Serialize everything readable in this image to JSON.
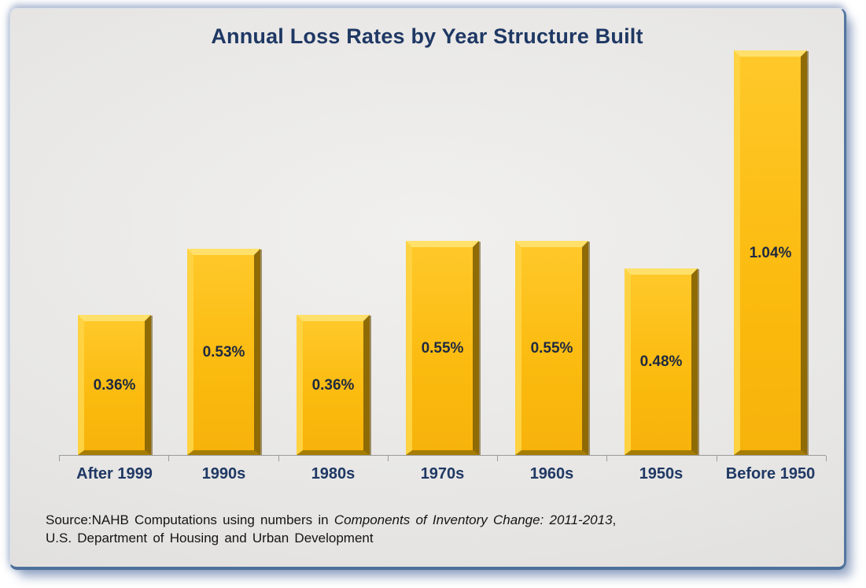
{
  "chart_data": {
    "type": "bar",
    "title": "Annual Loss Rates by Year Structure Built",
    "categories": [
      "After 1999",
      "1990s",
      "1980s",
      "1970s",
      "1960s",
      "1950s",
      "Before 1950"
    ],
    "values": [
      0.36,
      0.53,
      0.36,
      0.55,
      0.55,
      0.48,
      1.04
    ],
    "value_labels": [
      "0.36%",
      "0.53%",
      "0.36%",
      "0.55%",
      "0.55%",
      "0.48%",
      "1.04%"
    ],
    "unit": "percent annual loss rate",
    "xlabel": "",
    "ylabel": "",
    "ylim": [
      0,
      1.04
    ],
    "grid": false,
    "legend": false,
    "colors": {
      "bar_face": "#FBBA12",
      "bar_bevel_top": "#FFE06A",
      "bar_bevel_left": "#FFD241",
      "bar_bevel_right": "#8F6B06",
      "bar_bevel_bottom": "#A67D05",
      "value_label": "#1E2940",
      "category_label": "#1F3864",
      "title": "#1F3864",
      "axis": "#9B9B9B",
      "panel_border": "#53769F"
    }
  },
  "source": {
    "line1_prefix": "Source:NAHB Computations using numbers in ",
    "line1_italic": "Components of Inventory Change: 2011-2013",
    "line1_suffix": ",",
    "line2": "U.S. Department of Housing and Urban Development"
  }
}
